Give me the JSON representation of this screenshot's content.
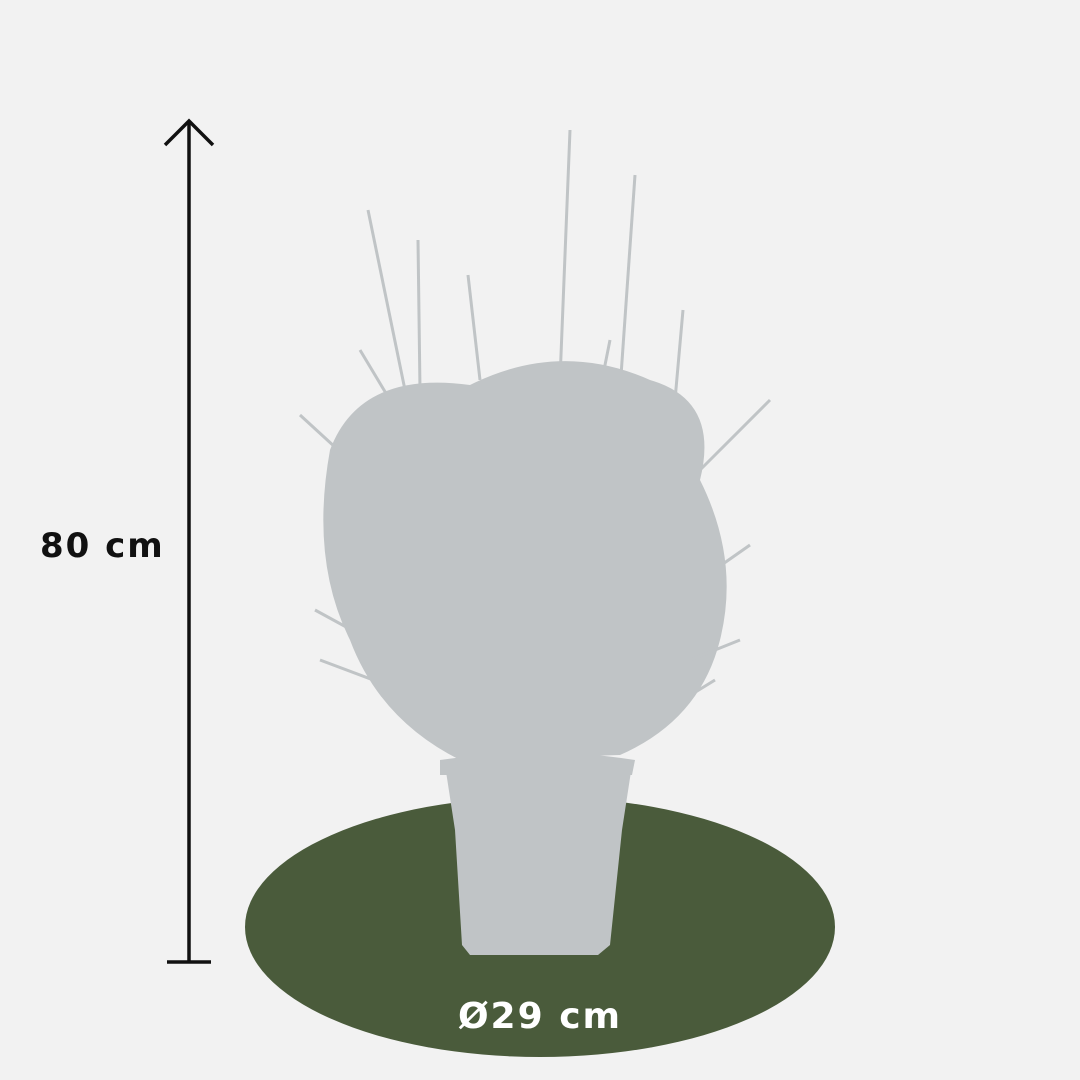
{
  "height_label": "80 cm",
  "diameter_label": "Ø29 cm",
  "colors": {
    "background": "#f2f2f2",
    "ground": "#4a5b3b",
    "plant": "#c0c4c6",
    "arrow": "#111111",
    "diameter_text": "#ffffff"
  }
}
